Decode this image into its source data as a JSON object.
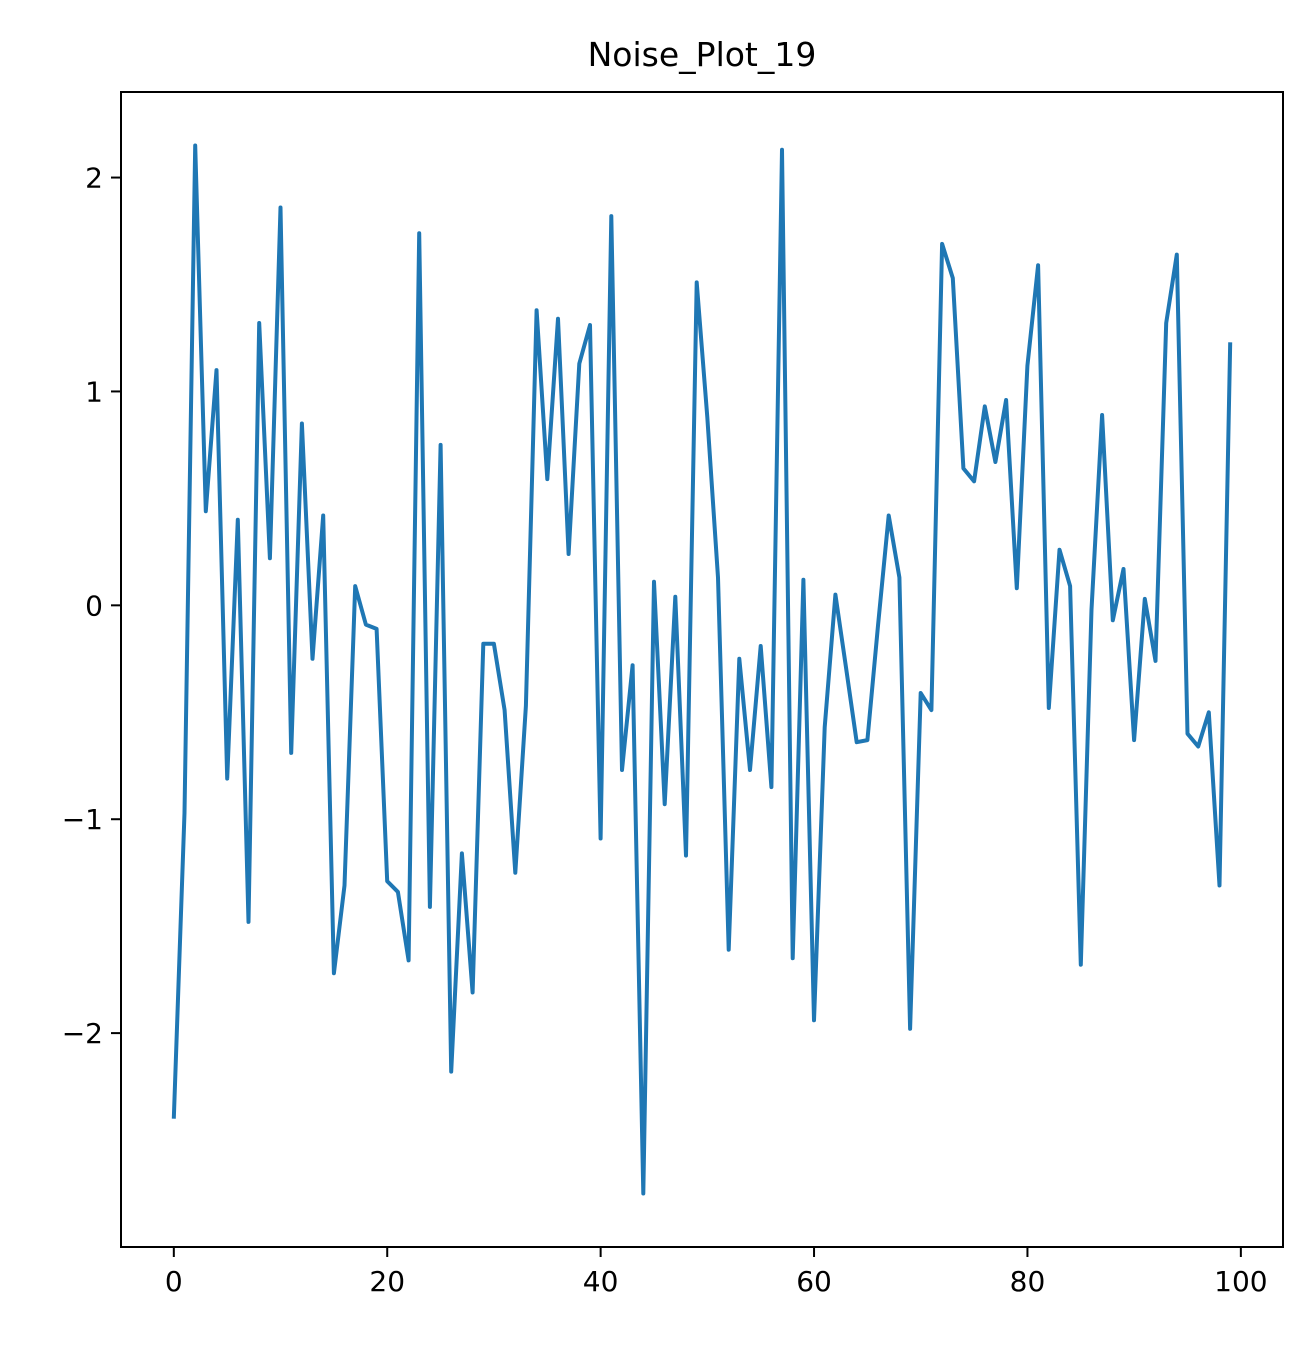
{
  "chart_data": {
    "type": "line",
    "title": "Noise_Plot_19",
    "xlabel": "",
    "ylabel": "",
    "xlim": [
      -4.95,
      103.95
    ],
    "ylim": [
      -3.0,
      2.4
    ],
    "x_ticks": [
      0,
      20,
      40,
      60,
      80,
      100
    ],
    "x_tick_labels": [
      "0",
      "20",
      "40",
      "60",
      "80",
      "100"
    ],
    "y_ticks": [
      -2,
      -1,
      0,
      1,
      2
    ],
    "y_tick_labels": [
      "−2",
      "−1",
      "0",
      "1",
      "2"
    ],
    "grid": false,
    "color": "#1f77b4",
    "series": [
      {
        "x": [
          0,
          1,
          2,
          3,
          4,
          5,
          6,
          7,
          8,
          9,
          10,
          11,
          12,
          13,
          14,
          15,
          16,
          17,
          18,
          19,
          20,
          21,
          22,
          23,
          24,
          25,
          26,
          27,
          28,
          29,
          30,
          31,
          32,
          33,
          34,
          35,
          36,
          37,
          38,
          39,
          40,
          41,
          42,
          43,
          44,
          45,
          46,
          47,
          48,
          49,
          50,
          51,
          52,
          53,
          54,
          55,
          56,
          57,
          58,
          59,
          60,
          61,
          62,
          63,
          64,
          65,
          66,
          67,
          68,
          69,
          70,
          71,
          72,
          73,
          74,
          75,
          76,
          77,
          78,
          79,
          80,
          81,
          82,
          83,
          84,
          85,
          86,
          87,
          88,
          89,
          90,
          91,
          92,
          93,
          94,
          95,
          96,
          97,
          98,
          99
        ],
        "values": [
          -2.4,
          -0.97,
          2.15,
          0.44,
          1.1,
          -0.81,
          0.4,
          -1.48,
          1.32,
          0.22,
          1.86,
          -0.69,
          0.85,
          -0.25,
          0.42,
          -1.72,
          -1.31,
          0.09,
          -0.09,
          -0.11,
          -1.29,
          -1.34,
          -1.66,
          1.74,
          -1.41,
          0.75,
          -2.18,
          -1.16,
          -1.81,
          -0.18,
          -0.18,
          -0.49,
          -1.25,
          -0.47,
          1.38,
          0.59,
          1.34,
          0.24,
          1.13,
          1.31,
          -1.09,
          1.82,
          -0.77,
          -0.28,
          -2.75,
          0.11,
          -0.93,
          0.04,
          -1.17,
          1.51,
          0.88,
          0.13,
          -1.61,
          -0.25,
          -0.77,
          -0.19,
          -0.85,
          2.13,
          -1.65,
          0.12,
          -1.94,
          -0.57,
          0.05,
          -0.29,
          -0.64,
          -0.63,
          -0.09,
          0.42,
          0.13,
          -1.98,
          -0.41,
          -0.49,
          1.69,
          1.53,
          0.64,
          0.58,
          0.93,
          0.67,
          0.96,
          0.08,
          1.12,
          1.59,
          -0.48,
          0.26,
          0.09,
          -1.68,
          -0.02,
          0.89,
          -0.07,
          0.17,
          -0.63,
          0.03,
          -0.26,
          1.32,
          1.64,
          -0.6,
          -0.66,
          -0.5,
          -1.31,
          1.23
        ]
      }
    ]
  }
}
